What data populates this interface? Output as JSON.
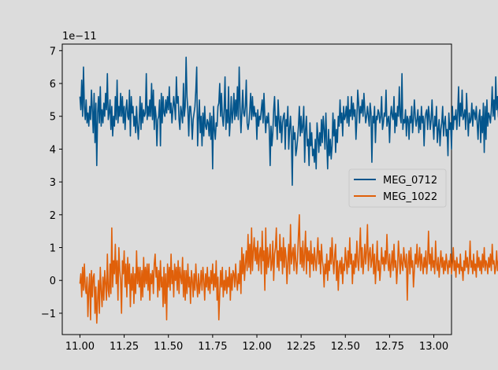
{
  "chart_data": {
    "type": "line",
    "offset_text": "1e−11",
    "x_range": [
      11.0,
      13.0
    ],
    "xlim": [
      10.9,
      13.1
    ],
    "ylim": [
      -1.65,
      7.2
    ],
    "x_ticks": [
      11.0,
      11.25,
      11.5,
      11.75,
      12.0,
      12.25,
      12.5,
      12.75,
      13.0
    ],
    "x_tick_labels": [
      "11.00",
      "11.25",
      "11.50",
      "11.75",
      "12.00",
      "12.25",
      "12.50",
      "12.75",
      "13.00"
    ],
    "y_ticks": [
      -1,
      0,
      1,
      2,
      3,
      4,
      5,
      6,
      7
    ],
    "y_tick_labels": [
      "−1",
      "0",
      "1",
      "2",
      "3",
      "4",
      "5",
      "6",
      "7"
    ],
    "grid": false,
    "legend_position": "center-right",
    "background": "#dcdcdc",
    "series": [
      {
        "name": "MEG_0712",
        "color": "#03558c",
        "x_start": 11.0,
        "x_step": 0.005,
        "values": [
          5.6,
          5.2,
          6.1,
          5.0,
          6.5,
          5.3,
          4.9,
          5.5,
          4.8,
          5.1,
          4.7,
          5.3,
          4.9,
          5.8,
          5.2,
          4.5,
          5.7,
          4.2,
          5.4,
          3.5,
          5.1,
          5.6,
          4.8,
          5.9,
          4.7,
          5.2,
          4.8,
          5.4,
          5.0,
          5.7,
          5.2,
          6.3,
          4.9,
          5.1,
          5.5,
          4.6,
          5.3,
          4.4,
          5.0,
          4.7,
          5.6,
          4.9,
          6.1,
          4.8,
          5.3,
          5.0,
          5.7,
          5.0,
          5.6,
          4.8,
          5.3,
          4.6,
          5.2,
          5.5,
          5.0,
          4.9,
          5.8,
          4.4,
          5.6,
          5.1,
          5.3,
          4.7,
          5.0,
          4.5,
          5.3,
          4.7,
          4.3,
          4.9,
          5.6,
          4.6,
          5.4,
          4.8,
          5.2,
          5.0,
          5.1,
          6.3,
          4.9,
          5.3,
          5.0,
          5.5,
          5.0,
          6.0,
          4.9,
          5.8,
          4.6,
          5.3,
          5.0,
          4.1,
          4.9,
          5.0,
          5.5,
          4.1,
          5.7,
          4.8,
          5.6,
          5.1,
          5.0,
          5.5,
          5.1,
          5.6,
          5.2,
          5.9,
          5.1,
          5.4,
          4.8,
          5.2,
          5.6,
          5.3,
          4.9,
          6.2,
          5.4,
          5.6,
          4.9,
          4.6,
          5.3,
          5.1,
          4.8,
          6.0,
          5.0,
          5.3,
          6.8,
          5.6,
          5.2,
          4.4,
          5.3,
          5.3,
          4.9,
          4.3,
          4.9,
          5.1,
          5.3,
          5.8,
          6.5,
          4.1,
          4.9,
          5.5,
          4.5,
          5.0,
          4.1,
          5.1,
          4.4,
          5.3,
          4.7,
          4.6,
          4.9,
          4.8,
          4.4,
          5.1,
          4.3,
          5.0,
          3.4,
          5.3,
          4.6,
          4.3,
          4.8,
          4.7,
          5.3,
          5.4,
          6.0,
          5.0,
          5.7,
          5.0,
          4.7,
          5.2,
          6.2,
          4.6,
          5.2,
          4.8,
          5.9,
          4.4,
          4.9,
          5.6,
          4.8,
          5.1,
          5.7,
          4.9,
          5.5,
          5.0,
          5.9,
          4.9,
          6.5,
          5.3,
          4.5,
          5.1,
          5.8,
          5.1,
          5.0,
          5.3,
          6.1,
          4.8,
          4.6,
          4.8,
          5.2,
          5.7,
          4.9,
          5.6,
          5.0,
          5.3,
          5.0,
          5.1,
          4.3,
          5.2,
          4.7,
          5.0,
          4.9,
          5.2,
          5.5,
          4.8,
          5.7,
          5.0,
          4.5,
          5.0,
          4.8,
          5.1,
          4.6,
          3.5,
          4.7,
          4.1,
          4.5,
          5.2,
          5.6,
          4.7,
          5.0,
          4.3,
          5.5,
          4.9,
          4.5,
          5.0,
          4.2,
          4.8,
          5.0,
          5.1,
          4.0,
          4.9,
          4.7,
          5.3,
          4.0,
          4.6,
          5.0,
          4.4,
          2.9,
          4.7,
          4.3,
          4.5,
          3.8,
          4.0,
          4.3,
          4.7,
          5.3,
          4.4,
          5.0,
          4.5,
          4.7,
          5.3,
          3.6,
          4.6,
          5.0,
          4.1,
          4.3,
          3.5,
          4.8,
          4.1,
          4.5,
          3.8,
          4.0,
          3.6,
          4.3,
          3.4,
          4.8,
          4.4,
          3.9,
          4.5,
          4.1,
          4.9,
          4.2,
          5.0,
          4.6,
          4.0,
          5.1,
          4.2,
          3.4,
          4.6,
          3.8,
          4.3,
          3.7,
          4.1,
          5.1,
          4.4,
          4.9,
          3.9,
          4.6,
          4.2,
          5.0,
          4.7,
          5.5,
          4.8,
          5.1,
          4.4,
          5.3,
          4.9,
          5.0,
          5.3,
          4.8,
          5.6,
          4.7,
          5.2,
          5.0,
          5.6,
          4.9,
          5.4,
          5.0,
          5.2,
          4.3,
          4.9,
          5.8,
          5.4,
          4.8,
          5.3,
          5.1,
          5.5,
          5.0,
          5.7,
          5.2,
          4.8,
          5.0,
          5.3,
          5.0,
          4.7,
          5.4,
          5.1,
          3.6,
          5.0,
          4.8,
          5.3,
          4.2,
          5.0,
          4.9,
          5.2,
          5.1,
          4.8,
          5.0,
          5.6,
          4.6,
          4.8,
          5.1,
          5.0,
          5.8,
          4.7,
          4.9,
          5.0,
          4.2,
          5.0,
          5.3,
          5.0,
          4.9,
          5.6,
          4.5,
          5.1,
          4.7,
          5.3,
          5.0,
          5.9,
          5.0,
          4.8,
          6.3,
          4.6,
          4.9,
          4.8,
          5.2,
          4.4,
          5.0,
          4.9,
          4.3,
          5.0,
          4.8,
          5.3,
          4.5,
          4.9,
          5.5,
          5.0,
          4.7,
          4.9,
          5.2,
          4.5,
          5.0,
          4.6,
          5.3,
          4.8,
          5.0,
          4.1,
          4.9,
          5.1,
          5.2,
          4.6,
          5.3,
          5.0,
          4.6,
          4.9,
          5.5,
          4.8,
          4.3,
          5.0,
          4.7,
          5.3,
          4.2,
          4.6,
          4.9,
          4.1,
          4.6,
          4.8,
          5.3,
          4.4,
          4.8,
          5.0,
          4.4,
          4.6,
          3.8,
          5.1,
          4.6,
          4.8,
          4.0,
          5.3,
          4.6,
          5.0,
          4.9,
          5.2,
          4.6,
          5.1,
          5.9,
          4.7,
          5.4,
          5.0,
          5.8,
          4.9,
          5.0,
          5.2,
          4.6,
          5.7,
          5.0,
          4.4,
          5.1,
          4.8,
          4.9,
          5.4,
          4.7,
          5.2,
          5.1,
          4.9,
          5.3,
          4.8,
          4.3,
          5.0,
          5.2,
          4.2,
          5.0,
          4.5,
          5.4,
          3.9,
          5.3,
          4.3,
          5.5,
          4.7,
          5.1,
          5.0,
          4.8,
          5.2,
          5.9,
          5.0,
          5.5,
          4.9,
          6.2,
          5.2,
          5.6,
          5.0,
          4.8,
          5.3,
          4.7,
          5.2,
          4.9,
          4.4,
          5.0,
          4.6,
          5.2,
          4.9,
          5.5,
          4.5,
          5.0,
          5.2,
          4.1,
          4.9,
          5.6,
          5.3,
          4.7,
          5.0,
          5.6,
          4.8,
          6.1,
          5.0,
          5.4,
          4.6,
          5.2,
          4.9,
          5.5,
          5.0,
          6.0,
          5.1,
          5.8,
          4.8,
          5.1,
          5.0,
          5.3,
          4.8,
          4.3,
          5.1,
          5.6,
          4.9,
          5.4,
          5.0,
          5.3,
          4.7,
          5.8,
          5.2,
          6.0,
          5.3,
          4.9,
          4.4,
          6.1,
          4.9,
          5.6,
          5.0,
          6.1,
          4.8,
          5.2,
          5.0,
          4.6
        ]
      },
      {
        "name": "MEG_1022",
        "color": "#e0600a",
        "x_start": 11.0,
        "x_step": 0.005,
        "values": [
          -0.1,
          0.2,
          -0.5,
          0.4,
          -0.3,
          0.5,
          -0.2,
          -0.4,
          0.1,
          -1.1,
          -0.3,
          0.2,
          -1.2,
          0.3,
          -0.5,
          0.1,
          0.2,
          -1.0,
          -0.2,
          -1.3,
          -0.6,
          0.0,
          -1.0,
          0.4,
          -0.3,
          -0.8,
          0.1,
          -0.6,
          0.3,
          -0.1,
          -0.6,
          0.8,
          -0.3,
          -0.5,
          0.5,
          -0.4,
          1.6,
          -0.2,
          0.6,
          0.2,
          1.1,
          -0.1,
          0.6,
          -0.6,
          1.0,
          0.3,
          0.0,
          -1.0,
          0.6,
          0.2,
          0.9,
          -0.2,
          0.5,
          -0.5,
          0.7,
          -0.1,
          0.5,
          -0.8,
          0.2,
          -0.3,
          0.4,
          -0.7,
          0.2,
          -0.4,
          0.9,
          -0.1,
          0.4,
          -0.2,
          0.4,
          -0.6,
          0.3,
          -0.5,
          0.7,
          -0.2,
          0.4,
          -0.1,
          0.5,
          -0.3,
          0.5,
          -0.6,
          0.2,
          -0.1,
          0.3,
          -0.4,
          0.5,
          0.8,
          0.1,
          0.4,
          -0.5,
          0.3,
          -0.3,
          0.6,
          -0.2,
          0.1,
          -0.8,
          0.4,
          -0.7,
          0.2,
          -1.2,
          0.5,
          -0.2,
          0.4,
          -0.3,
          0.8,
          -0.1,
          0.3,
          -0.5,
          0.5,
          0.0,
          0.4,
          -0.3,
          0.6,
          -0.4,
          0.4,
          0.1,
          -0.1,
          0.7,
          -0.5,
          0.3,
          -0.6,
          0.3,
          -0.4,
          0.5,
          -0.2,
          0.1,
          -0.7,
          0.3,
          0.0,
          -0.5,
          0.2,
          -0.3,
          0.5,
          -0.1,
          -0.5,
          0.2,
          -0.4,
          -0.1,
          0.3,
          -0.3,
          0.4,
          0.0,
          -0.6,
          0.2,
          -0.2,
          0.4,
          -0.3,
          0.1,
          -0.4,
          0.3,
          -0.1,
          0.5,
          -0.3,
          0.2,
          -0.2,
          0.6,
          -0.6,
          0.1,
          -1.2,
          -0.4,
          0.3,
          -0.2,
          0.4,
          -0.5,
          0.0,
          -0.3,
          0.3,
          -0.4,
          0.1,
          -0.2,
          0.4,
          -0.6,
          0.2,
          -0.3,
          0.3,
          0.2,
          -0.2,
          0.5,
          0.0,
          -0.3,
          0.2,
          -0.1,
          0.6,
          -0.4,
          1.0,
          0.2,
          0.8,
          0.0,
          0.5,
          0.9,
          0.3,
          1.4,
          0.4,
          1.1,
          0.2,
          1.6,
          0.3,
          0.9,
          1.3,
          0.6,
          1.0,
          0.5,
          1.2,
          0.3,
          0.8,
          1.0,
          0.2,
          1.5,
          0.6,
          0.9,
          -0.3,
          1.6,
          0.2,
          1.0,
          0.4,
          0.7,
          1.1,
          0.3,
          0.5,
          1.2,
          0.0,
          0.8,
          1.0,
          1.6,
          0.4,
          0.9,
          0.3,
          1.4,
          0.6,
          1.0,
          0.2,
          1.3,
          0.4,
          1.0,
          0.7,
          -0.1,
          0.6,
          1.1,
          0.2,
          1.7,
          0.5,
          0.8,
          1.0,
          0.3,
          1.1,
          0.6,
          0.2,
          0.7,
          1.4,
          2.0,
          0.5,
          1.0,
          0.4,
          1.2,
          0.3,
          0.8,
          1.5,
          0.2,
          1.0,
          0.6,
          0.9,
          0.1,
          1.2,
          0.5,
          0.8,
          0.3,
          1.0,
          0.6,
          0.3,
          0.8,
          1.3,
          0.5,
          0.9,
          0.2,
          1.1,
          0.6,
          0.4,
          -0.2,
          0.5,
          0.2,
          0.8,
          0.0,
          0.6,
          0.3,
          1.0,
          0.5,
          1.3,
          0.6,
          0.2,
          0.8,
          1.1,
          0.0,
          0.6,
          -0.3,
          0.4,
          0.6,
          0.2,
          0.7,
          -0.1,
          0.5,
          0.3,
          1.0,
          0.6,
          0.2,
          0.9,
          0.4,
          1.3,
          0.5,
          0.8,
          -0.1,
          0.6,
          0.2,
          0.8,
          0.4,
          1.2,
          0.6,
          0.3,
          0.9,
          1.6,
          0.4,
          1.0,
          0.2,
          0.6,
          1.1,
          0.5,
          0.9,
          1.7,
          0.3,
          0.8,
          1.0,
          0.4,
          0.6,
          1.1,
          0.2,
          0.8,
          -0.1,
          0.5,
          1.2,
          0.3,
          0.6,
          0.0,
          0.4,
          1.0,
          0.5,
          0.7,
          0.3,
          0.9,
          0.5,
          1.4,
          0.6,
          0.3,
          0.8,
          0.1,
          0.5,
          0.9,
          0.3,
          1.1,
          0.4,
          0.6,
          -0.1,
          0.4,
          1.2,
          0.7,
          0.2,
          0.8,
          0.5,
          0.3,
          1.0,
          0.6,
          0.4,
          0.8,
          -0.6,
          0.5,
          0.9,
          0.2,
          1.0,
          0.4,
          0.6,
          -0.2,
          0.3,
          0.8,
          0.5,
          1.1,
          0.4,
          0.6,
          1.0,
          0.3,
          0.8,
          0.5,
          0.2,
          0.7,
          0.4,
          0.9,
          0.2,
          0.6,
          1.5,
          0.5,
          0.8,
          0.3,
          1.0,
          0.4,
          0.6,
          0.2,
          1.2,
          0.5,
          0.3,
          0.7,
          0.1,
          0.5,
          0.9,
          0.4,
          0.7,
          0.2,
          0.6,
          0.3,
          0.8,
          0.5,
          0.2,
          0.6,
          0.4,
          0.8,
          0.2,
          0.5,
          1.0,
          0.3,
          0.6,
          0.1,
          0.7,
          0.4,
          0.5,
          0.2,
          0.8,
          0.3,
          0.4,
          0.0,
          0.6,
          0.3,
          0.9,
          0.4,
          0.7,
          0.2,
          0.5,
          1.2,
          0.4,
          0.6,
          0.2,
          0.8,
          0.3,
          0.5,
          0.1,
          0.9,
          0.4,
          0.7,
          0.3,
          0.6,
          0.2,
          0.8,
          0.4,
          1.0,
          0.3,
          0.6,
          0.5,
          0.2,
          0.7,
          0.4,
          0.8,
          0.3,
          1.1,
          0.5,
          0.6,
          0.2,
          0.4,
          0.9,
          0.3,
          0.6,
          0.2,
          0.5,
          0.8,
          0.4,
          0.6,
          0.3,
          0.5,
          0.7,
          0.2,
          0.5,
          0.4,
          0.8,
          0.3,
          0.6,
          0.5,
          -0.1,
          0.4,
          0.7,
          0.2,
          0.6,
          0.3,
          0.9,
          0.4,
          0.5,
          0.8,
          0.2,
          0.6,
          0.4,
          0.7,
          0.3,
          0.5,
          1.0,
          0.4,
          0.6,
          0.3,
          0.8,
          0.2,
          0.5,
          0.9,
          0.3,
          0.6,
          0.4,
          0.7,
          0.2,
          0.5,
          0.3,
          0.8,
          0.4,
          0.6,
          0.2,
          0.5,
          0.9,
          0.3,
          0.6,
          0.4,
          1.6,
          0.2,
          0.5,
          0.8,
          0.3,
          0.6,
          -0.3,
          0.4,
          0.7,
          0.2,
          0.5,
          0.9,
          0.3,
          0.4
        ]
      }
    ]
  }
}
